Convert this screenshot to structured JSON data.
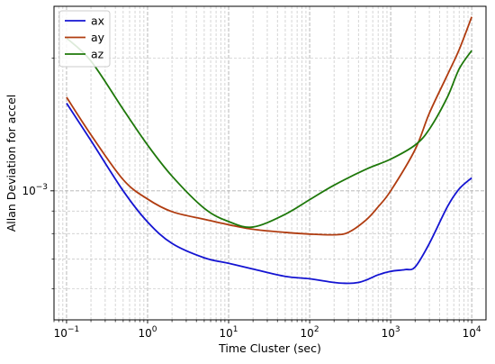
{
  "chart_data": {
    "type": "line",
    "title": "",
    "xlabel": "Time Cluster (sec)",
    "ylabel": "Allan Deviation for accel",
    "xscale": "log",
    "yscale": "log",
    "xlim": [
      0.07,
      15000
    ],
    "ylim": [
      0.00051,
      0.00262
    ],
    "x_ticks": [
      {
        "value": 0.1,
        "base": "10",
        "exp": "−1"
      },
      {
        "value": 1,
        "base": "10",
        "exp": "0"
      },
      {
        "value": 10,
        "base": "10",
        "exp": "1"
      },
      {
        "value": 100,
        "base": "10",
        "exp": "2"
      },
      {
        "value": 1000,
        "base": "10",
        "exp": "3"
      },
      {
        "value": 10000,
        "base": "10",
        "exp": "4"
      }
    ],
    "y_ticks": [
      {
        "value": 0.001,
        "base": "10",
        "exp": "−3"
      }
    ],
    "grid": "on (major and minor, dashed gray)",
    "legend": "top-left",
    "series": [
      {
        "name": "ax",
        "color": "#1414d2",
        "x": [
          0.1,
          0.2,
          0.5,
          1,
          2,
          5,
          10,
          20,
          50,
          100,
          200,
          300,
          400,
          500,
          700,
          1000,
          1500,
          2000,
          3000,
          5000,
          7000,
          10000
        ],
        "y": [
          0.00158,
          0.0013,
          0.001,
          0.00085,
          0.00076,
          0.000705,
          0.000685,
          0.000665,
          0.00064,
          0.000632,
          0.00062,
          0.000617,
          0.00062,
          0.000628,
          0.000645,
          0.000657,
          0.000663,
          0.000672,
          0.00076,
          0.00092,
          0.00101,
          0.00107
        ]
      },
      {
        "name": "ay",
        "color": "#b03c10",
        "x": [
          0.1,
          0.2,
          0.5,
          1,
          2,
          5,
          10,
          20,
          50,
          100,
          200,
          300,
          500,
          700,
          1000,
          2000,
          3000,
          5000,
          7000,
          10000
        ],
        "y": [
          0.00163,
          0.00134,
          0.00106,
          0.000958,
          0.000897,
          0.000862,
          0.000838,
          0.000818,
          0.000805,
          0.000798,
          0.000795,
          0.000805,
          0.00086,
          0.00092,
          0.001,
          0.00124,
          0.0015,
          0.00183,
          0.00209,
          0.00248
        ]
      },
      {
        "name": "az",
        "color": "#1e780a",
        "x": [
          0.1,
          0.2,
          0.5,
          1,
          2,
          5,
          10,
          20,
          50,
          100,
          200,
          500,
          1000,
          2000,
          3000,
          5000,
          7000,
          10000
        ],
        "y": [
          0.00222,
          0.00197,
          0.00153,
          0.00127,
          0.00108,
          0.000913,
          0.000852,
          0.000828,
          0.000885,
          0.000955,
          0.00103,
          0.00112,
          0.00118,
          0.00127,
          0.00138,
          0.00163,
          0.00189,
          0.00208
        ]
      }
    ]
  }
}
